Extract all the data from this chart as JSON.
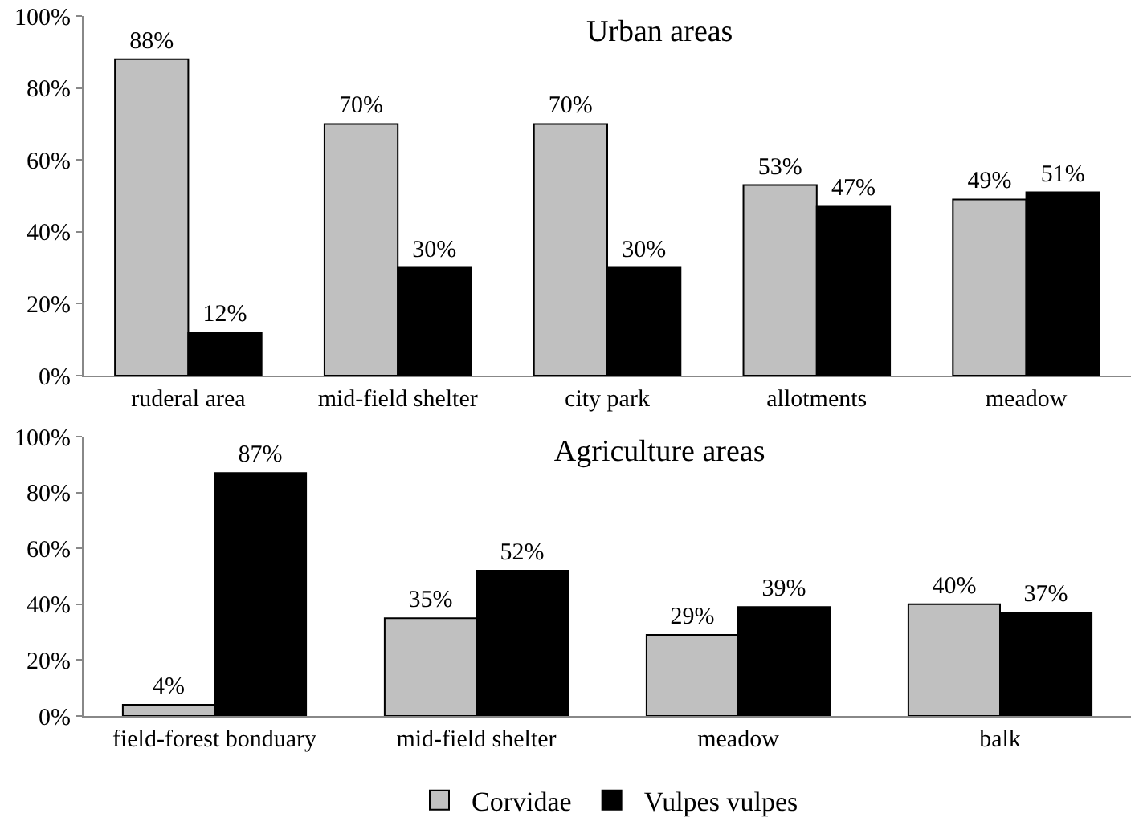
{
  "chart_data": [
    {
      "type": "bar",
      "title": "Urban areas",
      "categories": [
        "ruderal area",
        "mid-field shelter",
        "city park",
        "allotments",
        "meadow"
      ],
      "series": [
        {
          "color": "#c0c0c0",
          "values": [
            88,
            70,
            70,
            53,
            49
          ],
          "value_labels": [
            "88%",
            "70%",
            "70%",
            "53%",
            "49%"
          ]
        },
        {
          "color": "#000000",
          "values": [
            12,
            30,
            30,
            47,
            51
          ],
          "value_labels": [
            "12%",
            "30%",
            "30%",
            "47%",
            "51%"
          ]
        }
      ],
      "ylim": [
        0,
        100
      ],
      "yticks": [
        {
          "value": 0,
          "label": "0%"
        },
        {
          "value": 20,
          "label": "20%"
        },
        {
          "value": 40,
          "label": "40%"
        },
        {
          "value": 60,
          "label": "60%"
        },
        {
          "value": 80,
          "label": "80%"
        },
        {
          "value": 100,
          "label": "100%"
        }
      ],
      "legend": false
    },
    {
      "type": "bar",
      "title": "Agriculture areas",
      "categories": [
        "field-forest bonduary",
        "mid-field shelter",
        "meadow",
        "balk"
      ],
      "series": [
        {
          "name": "Corvidae",
          "color": "#c0c0c0",
          "values": [
            4,
            35,
            29,
            40
          ],
          "value_labels": [
            "4%",
            "35%",
            "29%",
            "40%"
          ]
        },
        {
          "name": "Vulpes vulpes",
          "color": "#000000",
          "values": [
            87,
            52,
            39,
            37
          ],
          "value_labels": [
            "87%",
            "52%",
            "39%",
            "37%"
          ]
        }
      ],
      "ylim": [
        0,
        100
      ],
      "yticks": [
        {
          "value": 0,
          "label": "0%"
        },
        {
          "value": 20,
          "label": "20%"
        },
        {
          "value": 40,
          "label": "40%"
        },
        {
          "value": 60,
          "label": "60%"
        },
        {
          "value": 80,
          "label": "80%"
        },
        {
          "value": 100,
          "label": "100%"
        }
      ],
      "legend": "bottom"
    }
  ]
}
